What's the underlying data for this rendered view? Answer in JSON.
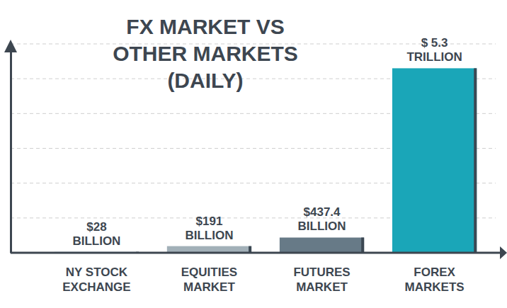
{
  "chart_data": {
    "type": "bar",
    "title": "FX MARKET VS OTHER MARKETS (DAILY)",
    "categories": [
      "NY STOCK EXCHANGE",
      "EQUITIES MARKET",
      "FUTURES MARKET",
      "FOREX MARKETS"
    ],
    "values": [
      28,
      191,
      437.4,
      5300
    ],
    "value_labels": [
      "$28 BILLION",
      "$191 BILLION",
      "$437.4 BILLION",
      "$ 5.3 TRILLION"
    ],
    "colors": [
      "#d0dde6",
      "#a2b0b8",
      "#677a87",
      "#1aa6b8"
    ],
    "ylim": [
      0,
      6000
    ],
    "yticks": [
      0,
      1000,
      2000,
      3000,
      4000,
      5000,
      6000
    ],
    "grid": true,
    "data_labels": true,
    "tick_labels": "x"
  }
}
